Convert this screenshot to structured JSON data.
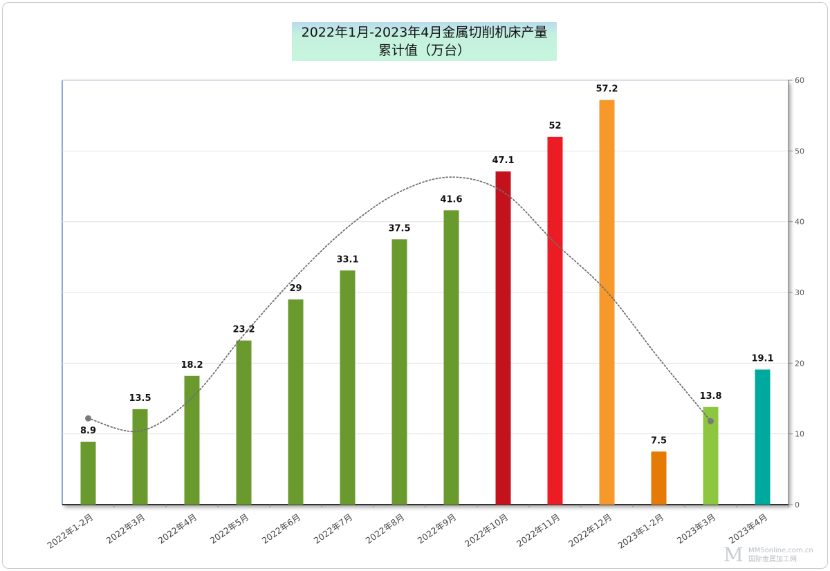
{
  "chart_data": {
    "type": "bar",
    "title_line1": "2022年1月-2023年4月金属切削机床产量",
    "title_line2": "累计值（万台）",
    "categories": [
      "2022年1-2月",
      "2022年3月",
      "2022年4月",
      "2022年5月",
      "2022年6月",
      "2022年7月",
      "2022年8月",
      "2022年9月",
      "2022年10月",
      "2022年11月",
      "2022年12月",
      "2023年1-2月",
      "2023年3月",
      "2023年4月"
    ],
    "values": [
      8.9,
      13.5,
      18.2,
      23.2,
      29,
      33.1,
      37.5,
      41.6,
      47.1,
      52,
      57.2,
      7.5,
      13.8,
      19.1
    ],
    "value_labels": [
      "8.9",
      "13.5",
      "18.2",
      "23.2",
      "29",
      "33.1",
      "37.5",
      "41.6",
      "47.1",
      "52",
      "57.2",
      "7.5",
      "13.8",
      "19.1"
    ],
    "bar_colors": [
      "#6a9a2e",
      "#6a9a2e",
      "#6a9a2e",
      "#6a9a2e",
      "#6a9a2e",
      "#6a9a2e",
      "#6a9a2e",
      "#6a9a2e",
      "#c4121c",
      "#ec1c24",
      "#f7982b",
      "#e57a05",
      "#8dc63f",
      "#00a99d"
    ],
    "y_axis": {
      "position": "right",
      "ylim": [
        0,
        60
      ],
      "ticks": [
        "0",
        "10",
        "20",
        "30",
        "40",
        "50",
        "60"
      ]
    },
    "grid": true,
    "trendline": {
      "style": "dotted",
      "color": "#707070",
      "values": [
        12.2,
        10.4,
        15.1,
        24.0,
        32.2,
        39.2,
        44.2,
        46.3,
        44.2,
        37.0,
        30.1,
        20.7,
        11.8
      ]
    }
  },
  "watermark": {
    "line1": "MM5online.com.cn",
    "line2": "国际金属加工网"
  }
}
